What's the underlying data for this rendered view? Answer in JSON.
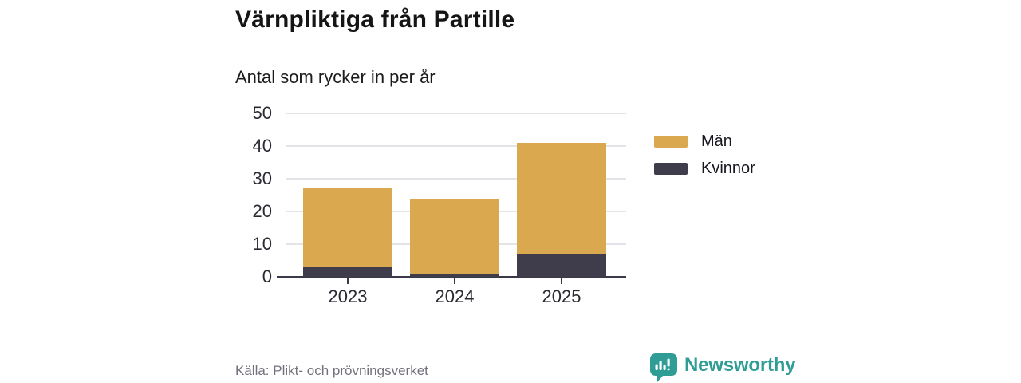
{
  "header": {
    "title": "Värnpliktiga från Partille",
    "subtitle": "Antal som rycker in per år"
  },
  "chart_data": {
    "type": "bar",
    "stacked": true,
    "title": "Värnpliktiga från Partille",
    "subtitle": "Antal som rycker in per år",
    "categories": [
      "2023",
      "2024",
      "2025"
    ],
    "series": [
      {
        "name": "Män",
        "color": "#d9a84f",
        "values": [
          24,
          23,
          34
        ]
      },
      {
        "name": "Kvinnor",
        "color": "#3f3d4b",
        "values": [
          3,
          1,
          7
        ]
      }
    ],
    "totals": [
      27,
      24,
      41
    ],
    "xlabel": "",
    "ylabel": "",
    "ylim": [
      0,
      50
    ],
    "yticks": [
      0,
      10,
      20,
      30,
      40,
      50
    ],
    "grid": true,
    "legend_position": "right"
  },
  "footer": {
    "source": "Källa: Plikt- och prövningsverket",
    "brand": "Newsworthy"
  },
  "colors": {
    "mens_bar": "#d9a84f",
    "womens_bar": "#3f3d4b",
    "axis": "#3b3947",
    "gridline": "#e4e3e7",
    "brand_teal": "#2f9d95",
    "source_gray": "#73727d"
  }
}
